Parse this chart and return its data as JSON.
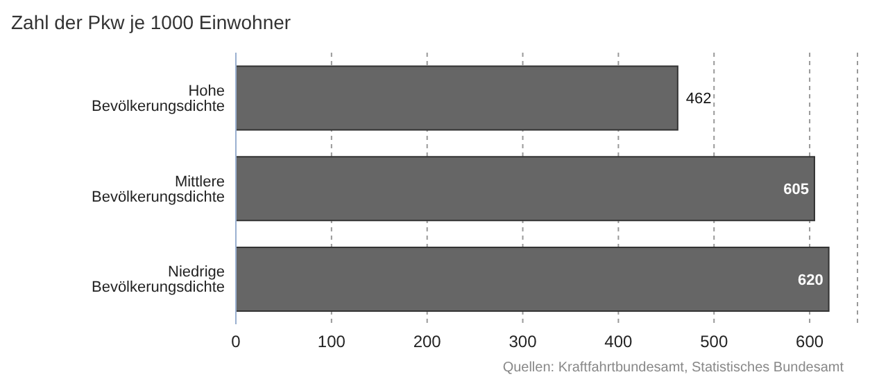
{
  "chart_data": {
    "type": "bar",
    "orientation": "horizontal",
    "title": "Zahl der Pkw je 1000 Einwohner",
    "categories": [
      "Hohe Bevölkerungsdichte",
      "Mittlere Bevölkerungsdichte",
      "Niedrige Bevölkerungsdichte"
    ],
    "values": [
      462,
      605,
      620
    ],
    "color": "#666666",
    "xlim": [
      0,
      650
    ],
    "xticks": [
      0,
      100,
      200,
      300,
      400,
      500,
      600
    ],
    "grid": "x",
    "data_labels": true,
    "annotations": [
      "Quellen: Kraftfahrtbundesamt, Statistisches Bundesamt"
    ]
  }
}
